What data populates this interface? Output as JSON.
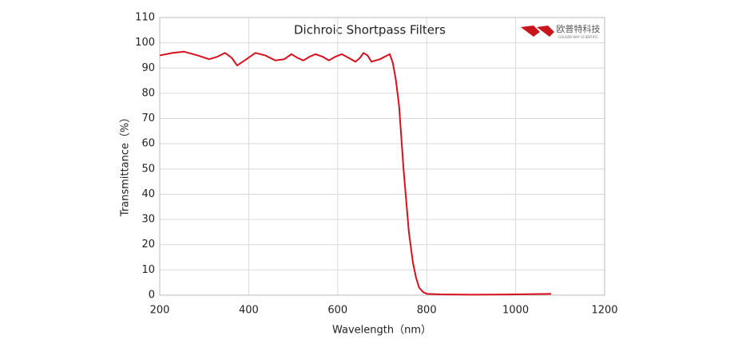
{
  "chart_data": {
    "type": "line",
    "title": "Dichroic Shortpass Filters",
    "logo_text": "欧普特科技",
    "logo_subtext": "GOLDEN WAY SCIENTIFIC",
    "x_label": "Wavelength（nm）",
    "y_label": "Transmittance（%）",
    "xlim": [
      200,
      1200
    ],
    "xticks": [
      200,
      400,
      600,
      800,
      1000,
      1200
    ],
    "ylim": [
      0,
      110
    ],
    "yticks": [
      0,
      10,
      20,
      30,
      40,
      50,
      60,
      70,
      80,
      90,
      100,
      110
    ],
    "grid": true,
    "x": [
      200,
      230,
      254,
      285,
      311,
      330,
      347,
      362,
      374,
      395,
      415,
      437,
      460,
      480,
      496,
      510,
      523,
      537,
      550,
      566,
      580,
      595,
      609,
      625,
      640,
      650,
      658,
      667,
      676,
      695,
      717,
      724,
      731,
      738,
      748,
      760,
      769,
      776,
      783,
      792,
      801,
      830,
      900,
      1000,
      1080
    ],
    "series": [
      {
        "color": "#d7101e",
        "values": [
          95,
          96,
          96.5,
          95,
          93.5,
          94.5,
          96,
          94,
          91,
          93.5,
          96,
          95,
          93,
          93.5,
          95.5,
          94,
          93,
          94.5,
          95.5,
          94.5,
          93,
          94.5,
          95.5,
          94,
          92.5,
          94,
          96,
          95,
          92.5,
          93.5,
          95.5,
          92,
          85,
          75,
          50,
          25,
          13,
          7,
          3,
          1.2,
          0.5,
          0.3,
          0.2,
          0.3,
          0.5
        ]
      }
    ]
  }
}
